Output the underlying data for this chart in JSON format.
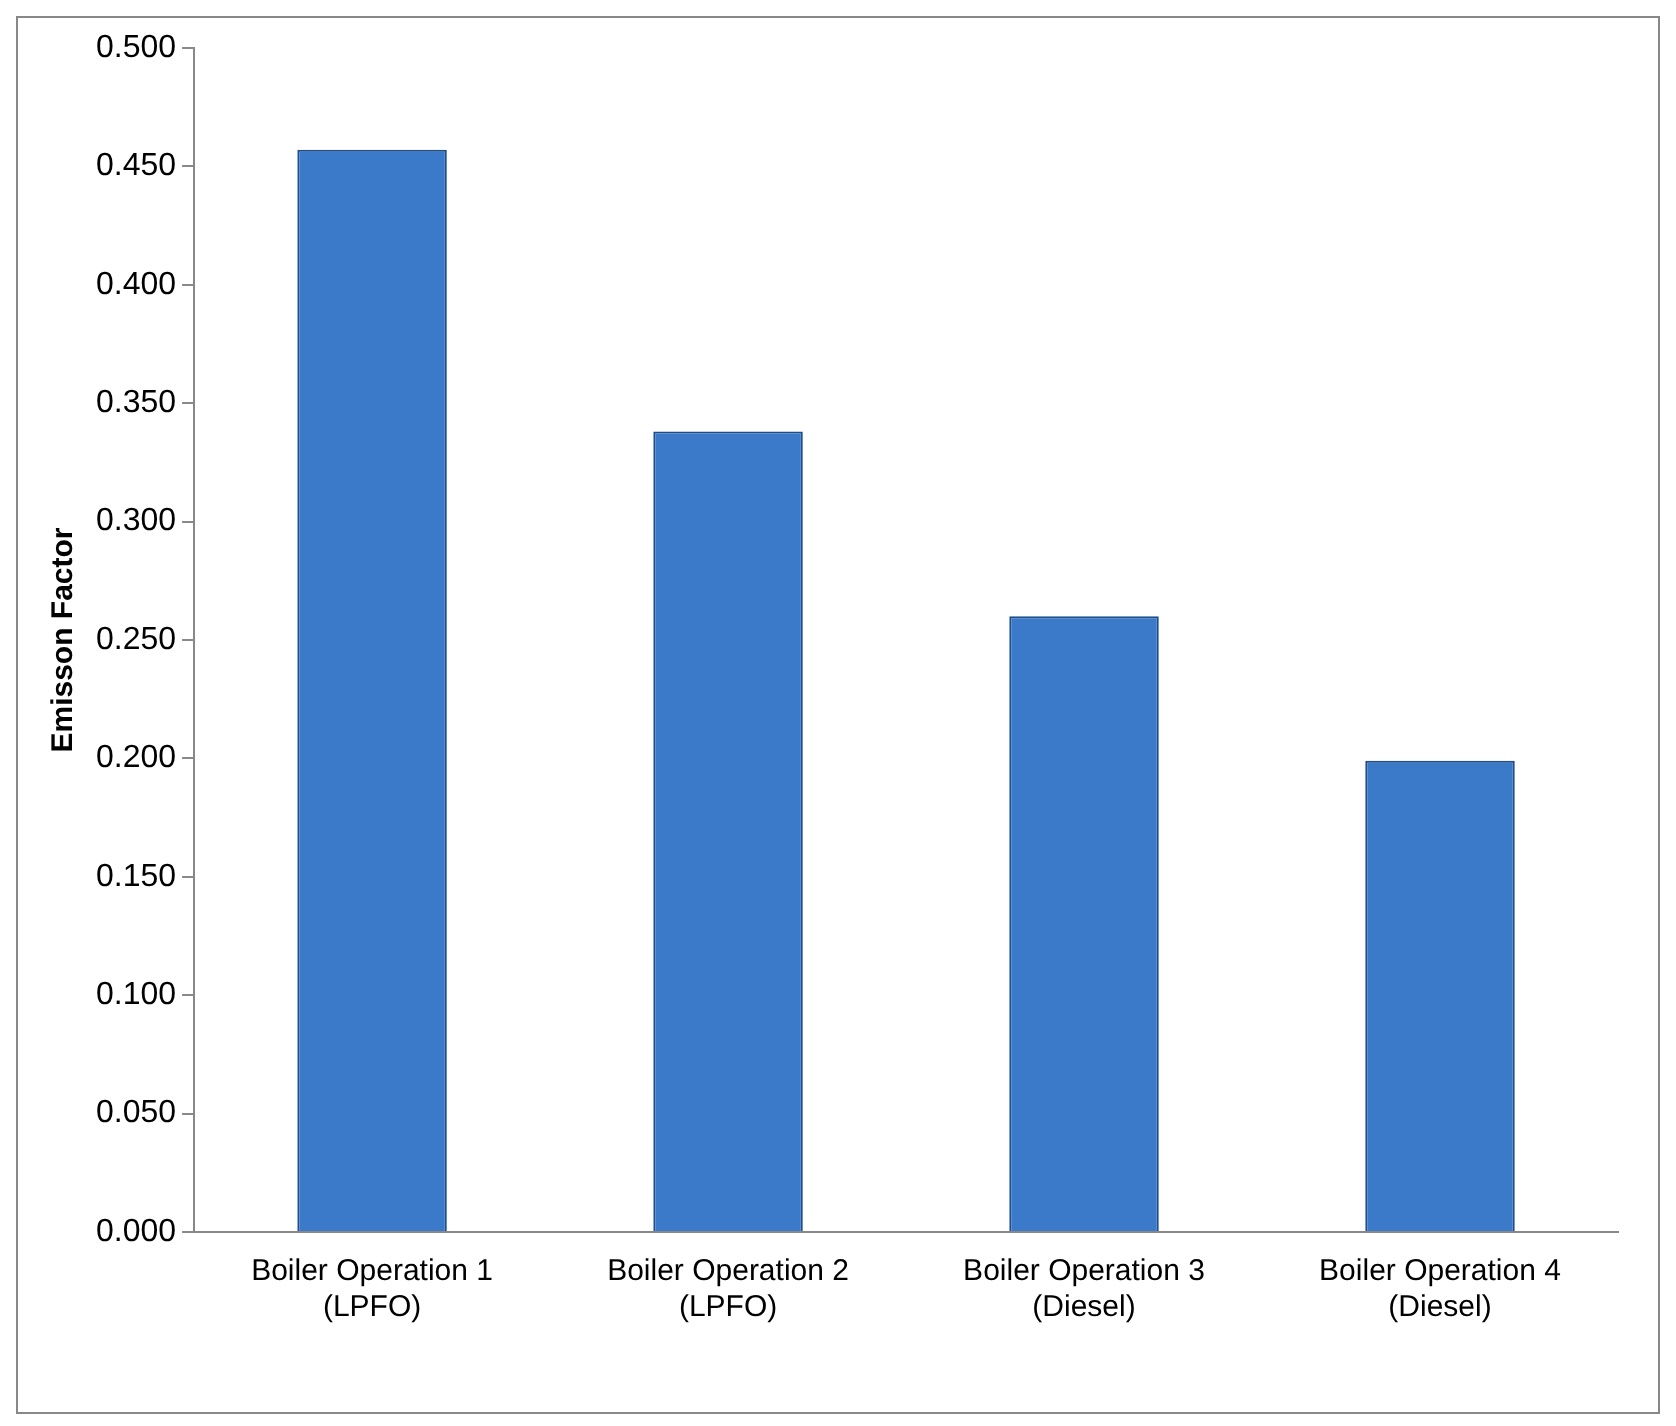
{
  "chart_data": {
    "type": "bar",
    "ylabel": "Emisson Factor",
    "categories": [
      "Boiler Operation 1 (LPFO)",
      "Boiler Operation 2 (LPFO)",
      "Boiler Operation 3 (Diesel)",
      "Boiler Operation 4 (Diesel)"
    ],
    "values": [
      0.457,
      0.338,
      0.26,
      0.199
    ],
    "color": "#3b79c9",
    "ylim": [
      0,
      0.5
    ],
    "yticks": [
      {
        "value": 0,
        "label": "0.000"
      },
      {
        "value": 0.05,
        "label": "0.050"
      },
      {
        "value": 0.1,
        "label": "0.100"
      },
      {
        "value": 0.15,
        "label": "0.150"
      },
      {
        "value": 0.2,
        "label": "0.200"
      },
      {
        "value": 0.25,
        "label": "0.250"
      },
      {
        "value": 0.3,
        "label": "0.300"
      },
      {
        "value": 0.35,
        "label": "0.350"
      },
      {
        "value": 0.4,
        "label": "0.400"
      },
      {
        "value": 0.45,
        "label": "0.450"
      },
      {
        "value": 0.5,
        "label": "0.500"
      }
    ],
    "grid": false
  }
}
